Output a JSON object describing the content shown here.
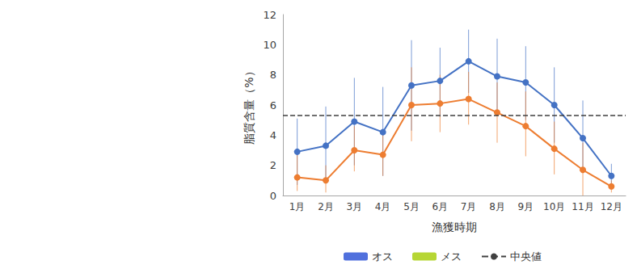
{
  "chart_data": {
    "type": "line",
    "x_label": "漁獲時期",
    "y_label": "脂質含量（%）",
    "categories": [
      "1月",
      "2月",
      "3月",
      "4月",
      "5月",
      "6月",
      "7月",
      "8月",
      "9月",
      "10月",
      "11月",
      "12月"
    ],
    "series": [
      {
        "name": "オス",
        "color": "#4472c4",
        "marker": "circle",
        "values": [
          2.9,
          3.3,
          4.9,
          4.2,
          7.3,
          7.6,
          8.9,
          7.9,
          7.5,
          6.0,
          3.8,
          1.3
        ],
        "lower": [
          0.7,
          0.9,
          2.0,
          1.3,
          4.3,
          5.2,
          6.8,
          5.3,
          5.0,
          3.5,
          1.5,
          0.5
        ],
        "upper": [
          5.1,
          5.9,
          7.8,
          7.2,
          10.3,
          9.8,
          11.0,
          10.4,
          9.9,
          8.5,
          6.3,
          2.1
        ]
      },
      {
        "name": "メス",
        "color": "#ed7d31",
        "marker": "circle",
        "values": [
          1.2,
          1.0,
          3.0,
          2.7,
          6.0,
          6.1,
          6.4,
          5.5,
          4.6,
          3.1,
          1.7,
          0.6
        ],
        "lower": [
          0.3,
          0.2,
          1.6,
          1.3,
          3.6,
          4.2,
          4.7,
          3.5,
          2.6,
          1.4,
          0.0,
          0.2
        ],
        "upper": [
          2.8,
          2.0,
          4.6,
          4.3,
          8.5,
          8.0,
          8.2,
          7.5,
          6.9,
          4.9,
          3.5,
          1.0
        ]
      }
    ],
    "reference_line": {
      "name": "中央値",
      "value": 5.3,
      "color": "#404040",
      "line_style": "dashed"
    },
    "ylim": [
      0,
      12
    ],
    "yticks": [
      0,
      2,
      4,
      6,
      8,
      10,
      12
    ],
    "grid": false,
    "legend": "bottom"
  }
}
